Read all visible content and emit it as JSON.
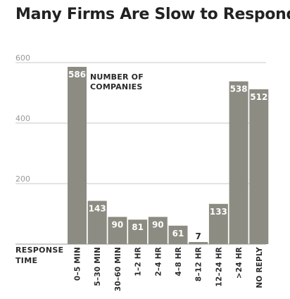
{
  "chart_data": {
    "type": "bar",
    "title": "Many Firms Are Slow to Respond",
    "annotation": [
      "NUMBER OF",
      "COMPANIES"
    ],
    "xlabel": [
      "RESPONSE",
      "TIME"
    ],
    "ylabel": "",
    "ylim": [
      0,
      600
    ],
    "yticks": [
      200,
      400,
      600
    ],
    "categories": [
      "0–5 MIN",
      "5–30 MIN",
      "30–60 MIN",
      "1–2 HR",
      "2–4 HR",
      "4–8 HR",
      "8–12 HR",
      "12–24 HR",
      ">24 HR",
      "NO REPLY"
    ],
    "values": [
      586,
      143,
      90,
      81,
      90,
      61,
      7,
      133,
      538,
      512
    ],
    "grid": true,
    "colors": {
      "bar": "#8c8c82",
      "grid": "#c8c8c8",
      "value_in": "#ffffff",
      "value_out": "#2a2a2a"
    }
  }
}
